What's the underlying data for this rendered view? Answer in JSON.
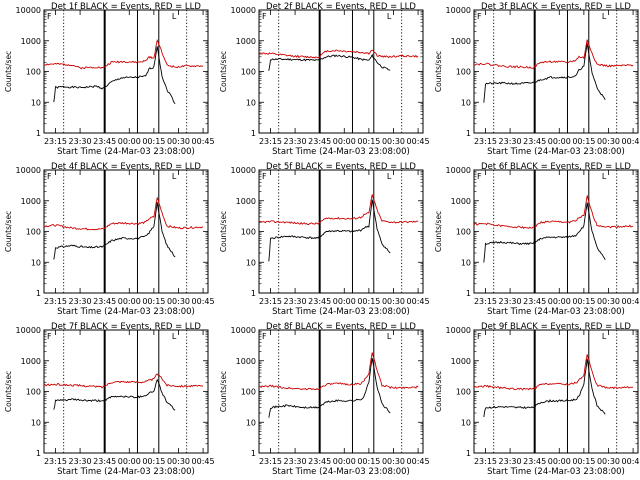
{
  "common": {
    "title_suffix": "BLACK = Events, RED = LLD",
    "xlabel": "Start Time (24-Mar-03 23:08:00)",
    "ylabel": "Counts/sec",
    "x_ticks": [
      "23:15",
      "23:30",
      "23:45",
      "00:00",
      "00:15",
      "00:30",
      "00:45"
    ],
    "y_ticks": [
      "1",
      "10",
      "100",
      "1000",
      "10000"
    ],
    "corner_marks": [
      "F",
      "L"
    ]
  },
  "chart_data": [
    {
      "type": "line",
      "scale": "log",
      "x_range": [
        "23:08",
        "00:48"
      ],
      "ylim": [
        1,
        10000
      ],
      "title": "Det 1f BLACK = Events, RED = LLD",
      "series": [
        {
          "color": "#000000",
          "x": [
            "23:14",
            "23:15",
            "23:20",
            "23:30",
            "23:40",
            "23:44",
            "23:49",
            "23:55",
            "00:05",
            "00:10",
            "00:12",
            "00:15",
            "00:17",
            "00:20",
            "00:23",
            "00:25",
            "00:28"
          ],
          "values": [
            10,
            30,
            32,
            30,
            33,
            28,
            45,
            62,
            65,
            70,
            120,
            140,
            700,
            70,
            25,
            18,
            9
          ]
        },
        {
          "color": "#cc0000",
          "x": [
            "23:08",
            "23:15",
            "23:25",
            "23:30",
            "23:40",
            "23:44",
            "23:49",
            "23:55",
            "00:05",
            "00:10",
            "00:12",
            "00:15",
            "00:17",
            "00:20",
            "00:23",
            "00:28",
            "00:35",
            "00:45"
          ],
          "values": [
            170,
            175,
            165,
            130,
            140,
            130,
            200,
            210,
            200,
            220,
            300,
            260,
            1100,
            420,
            160,
            140,
            150,
            150
          ]
        }
      ]
    },
    {
      "type": "line",
      "scale": "log",
      "x_range": [
        "23:08",
        "00:48"
      ],
      "ylim": [
        1,
        10000
      ],
      "title": "Det 2f BLACK = Events, RED = LLD",
      "series": [
        {
          "color": "#000000",
          "x": [
            "23:14",
            "23:15",
            "23:25",
            "23:35",
            "23:44",
            "23:49",
            "23:55",
            "00:05",
            "00:10",
            "00:15",
            "00:17",
            "00:20",
            "00:23",
            "00:28"
          ],
          "values": [
            100,
            250,
            250,
            240,
            230,
            300,
            330,
            290,
            250,
            230,
            330,
            200,
            140,
            110
          ]
        },
        {
          "color": "#cc0000",
          "x": [
            "23:08",
            "23:15",
            "23:25",
            "23:35",
            "23:44",
            "23:49",
            "23:55",
            "00:05",
            "00:10",
            "00:15",
            "00:17",
            "00:20",
            "00:25",
            "00:35",
            "00:45"
          ],
          "values": [
            390,
            380,
            330,
            300,
            290,
            460,
            480,
            440,
            420,
            390,
            500,
            330,
            300,
            320,
            310
          ]
        }
      ]
    },
    {
      "type": "line",
      "scale": "log",
      "x_range": [
        "23:08",
        "00:48"
      ],
      "ylim": [
        1,
        10000
      ],
      "title": "Det 3f BLACK = Events, RED = LLD",
      "series": [
        {
          "color": "#000000",
          "x": [
            "23:14",
            "23:15",
            "23:25",
            "23:35",
            "23:44",
            "23:49",
            "23:55",
            "00:05",
            "00:10",
            "00:12",
            "00:15",
            "00:17",
            "00:20",
            "00:23",
            "00:28"
          ],
          "values": [
            10,
            40,
            42,
            40,
            43,
            55,
            65,
            65,
            70,
            110,
            150,
            800,
            90,
            30,
            12
          ]
        },
        {
          "color": "#cc0000",
          "x": [
            "23:08",
            "23:15",
            "23:25",
            "23:35",
            "23:44",
            "23:49",
            "23:55",
            "00:05",
            "00:10",
            "00:12",
            "00:15",
            "00:17",
            "00:20",
            "00:23",
            "00:30",
            "00:45"
          ],
          "values": [
            170,
            180,
            150,
            140,
            135,
            200,
            210,
            200,
            230,
            300,
            280,
            1050,
            400,
            170,
            150,
            160
          ]
        }
      ]
    },
    {
      "type": "line",
      "scale": "log",
      "x_range": [
        "23:08",
        "00:48"
      ],
      "ylim": [
        1,
        10000
      ],
      "title": "Det 4f BLACK = Events, RED = LLD",
      "series": [
        {
          "color": "#000000",
          "x": [
            "23:14",
            "23:15",
            "23:25",
            "23:35",
            "23:44",
            "23:49",
            "23:55",
            "00:05",
            "00:10",
            "00:12",
            "00:15",
            "00:17",
            "00:20",
            "00:23",
            "00:28"
          ],
          "values": [
            12,
            30,
            35,
            30,
            32,
            50,
            60,
            60,
            70,
            90,
            150,
            900,
            100,
            35,
            15
          ]
        },
        {
          "color": "#cc0000",
          "x": [
            "23:08",
            "23:15",
            "23:25",
            "23:35",
            "23:44",
            "23:49",
            "23:55",
            "00:05",
            "00:10",
            "00:12",
            "00:15",
            "00:17",
            "00:20",
            "00:23",
            "00:30",
            "00:45"
          ],
          "values": [
            150,
            160,
            130,
            120,
            120,
            180,
            190,
            180,
            200,
            260,
            300,
            1300,
            400,
            150,
            130,
            140
          ]
        }
      ]
    },
    {
      "type": "line",
      "scale": "log",
      "x_range": [
        "23:08",
        "00:48"
      ],
      "ylim": [
        1,
        10000
      ],
      "title": "Det 5f BLACK = Events, RED = LLD",
      "series": [
        {
          "color": "#000000",
          "x": [
            "23:14",
            "23:15",
            "23:25",
            "23:35",
            "23:44",
            "23:49",
            "23:55",
            "00:05",
            "00:10",
            "00:12",
            "00:15",
            "00:17",
            "00:20",
            "00:23",
            "00:28"
          ],
          "values": [
            10,
            60,
            70,
            65,
            60,
            100,
            105,
            100,
            110,
            130,
            150,
            1100,
            120,
            40,
            20
          ]
        },
        {
          "color": "#cc0000",
          "x": [
            "23:08",
            "23:15",
            "23:25",
            "23:35",
            "23:44",
            "23:49",
            "23:55",
            "00:05",
            "00:10",
            "00:12",
            "00:15",
            "00:17",
            "00:20",
            "00:23",
            "00:30",
            "00:45"
          ],
          "values": [
            200,
            210,
            200,
            180,
            180,
            270,
            270,
            260,
            290,
            350,
            400,
            1600,
            500,
            220,
            200,
            210
          ]
        }
      ]
    },
    {
      "type": "line",
      "scale": "log",
      "x_range": [
        "23:08",
        "00:48"
      ],
      "ylim": [
        1,
        10000
      ],
      "title": "Det 6f BLACK = Events, RED = LLD",
      "series": [
        {
          "color": "#000000",
          "x": [
            "23:14",
            "23:15",
            "23:25",
            "23:35",
            "23:44",
            "23:49",
            "23:55",
            "00:05",
            "00:10",
            "00:12",
            "00:15",
            "00:17",
            "00:20",
            "00:23",
            "00:28"
          ],
          "values": [
            10,
            40,
            45,
            40,
            40,
            60,
            65,
            65,
            75,
            100,
            150,
            900,
            100,
            30,
            12
          ]
        },
        {
          "color": "#cc0000",
          "x": [
            "23:08",
            "23:15",
            "23:25",
            "23:35",
            "23:44",
            "23:49",
            "23:55",
            "00:05",
            "00:10",
            "00:12",
            "00:15",
            "00:17",
            "00:20",
            "00:23",
            "00:30",
            "00:45"
          ],
          "values": [
            170,
            180,
            150,
            140,
            130,
            200,
            210,
            200,
            220,
            280,
            320,
            1400,
            400,
            160,
            140,
            150
          ]
        }
      ]
    },
    {
      "type": "line",
      "scale": "log",
      "x_range": [
        "23:08",
        "00:48"
      ],
      "ylim": [
        1,
        10000
      ],
      "title": "Det 7f BLACK = Events, RED = LLD",
      "series": [
        {
          "color": "#000000",
          "x": [
            "23:14",
            "23:15",
            "23:25",
            "23:35",
            "23:44",
            "23:49",
            "23:55",
            "00:05",
            "00:10",
            "00:12",
            "00:15",
            "00:17",
            "00:20",
            "00:23",
            "00:28"
          ],
          "values": [
            25,
            50,
            55,
            50,
            50,
            65,
            70,
            65,
            75,
            90,
            100,
            250,
            90,
            45,
            25
          ]
        },
        {
          "color": "#cc0000",
          "x": [
            "23:08",
            "23:15",
            "23:25",
            "23:35",
            "23:44",
            "23:49",
            "23:55",
            "00:05",
            "00:10",
            "00:12",
            "00:15",
            "00:17",
            "00:20",
            "00:23",
            "00:30",
            "00:45"
          ],
          "values": [
            160,
            170,
            160,
            150,
            140,
            200,
            210,
            200,
            210,
            230,
            250,
            380,
            260,
            160,
            150,
            150
          ]
        }
      ]
    },
    {
      "type": "line",
      "scale": "log",
      "x_range": [
        "23:08",
        "00:48"
      ],
      "ylim": [
        1,
        10000
      ],
      "title": "Det 8f BLACK = Events, RED = LLD",
      "series": [
        {
          "color": "#000000",
          "x": [
            "23:14",
            "23:15",
            "23:25",
            "23:35",
            "23:44",
            "23:49",
            "23:55",
            "00:05",
            "00:10",
            "00:12",
            "00:15",
            "00:17",
            "00:20",
            "00:23",
            "00:28"
          ],
          "values": [
            15,
            30,
            35,
            30,
            30,
            45,
            50,
            50,
            55,
            70,
            200,
            1300,
            140,
            40,
            20
          ]
        },
        {
          "color": "#cc0000",
          "x": [
            "23:08",
            "23:15",
            "23:25",
            "23:35",
            "23:44",
            "23:49",
            "23:55",
            "00:05",
            "00:10",
            "00:12",
            "00:15",
            "00:17",
            "00:20",
            "00:23",
            "00:30",
            "00:45"
          ],
          "values": [
            140,
            150,
            130,
            120,
            120,
            170,
            180,
            170,
            180,
            220,
            400,
            1800,
            500,
            160,
            130,
            140
          ]
        }
      ]
    },
    {
      "type": "line",
      "scale": "log",
      "x_range": [
        "23:08",
        "00:48"
      ],
      "ylim": [
        1,
        10000
      ],
      "title": "Det 9f BLACK = Events, RED = LLD",
      "series": [
        {
          "color": "#000000",
          "x": [
            "23:14",
            "23:15",
            "23:25",
            "23:35",
            "23:44",
            "23:49",
            "23:55",
            "00:05",
            "00:10",
            "00:12",
            "00:15",
            "00:17",
            "00:20",
            "00:23",
            "00:28"
          ],
          "values": [
            15,
            30,
            32,
            30,
            30,
            45,
            50,
            50,
            55,
            70,
            180,
            1100,
            120,
            35,
            18
          ]
        },
        {
          "color": "#cc0000",
          "x": [
            "23:08",
            "23:15",
            "23:25",
            "23:35",
            "23:44",
            "23:49",
            "23:55",
            "00:05",
            "00:10",
            "00:12",
            "00:15",
            "00:17",
            "00:20",
            "00:23",
            "00:30",
            "00:45"
          ],
          "values": [
            140,
            150,
            130,
            120,
            120,
            170,
            180,
            170,
            190,
            230,
            350,
            1700,
            450,
            160,
            130,
            140
          ]
        }
      ]
    }
  ]
}
